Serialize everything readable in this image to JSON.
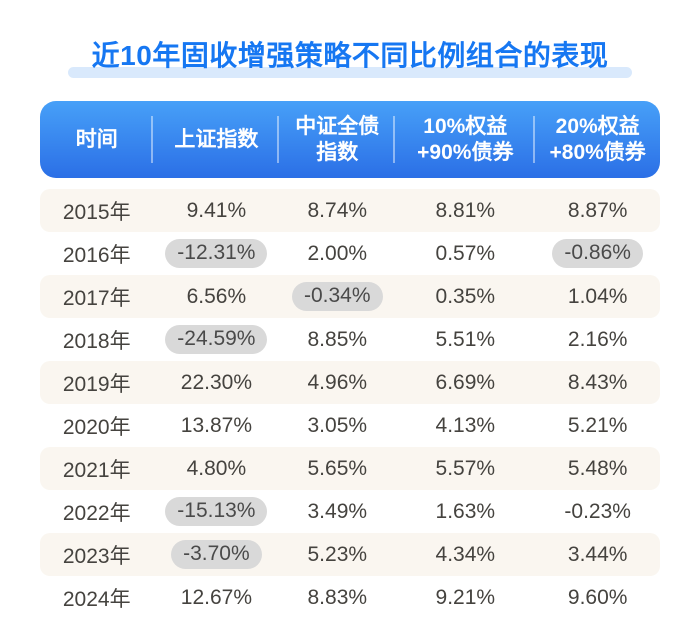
{
  "title": {
    "text": "近10年固收增强策略不同比例组合的表现",
    "color": "#1677f2",
    "underline_color": "#d9e9fc"
  },
  "table": {
    "header": {
      "columns": [
        "时间",
        "上证指数",
        "中证全债\n指数",
        "10%权益\n+90%债券",
        "20%权益\n+80%债券"
      ],
      "bg_gradient_top": "#47a0f8",
      "bg_gradient_bottom": "#2b6fe6",
      "text_color": "#ffffff"
    },
    "alt_row_color": "#faf6f0",
    "text_color": "#45433f",
    "highlight_pill_color": "#d9d9d9",
    "rows": [
      {
        "year": "2015年",
        "values": [
          {
            "text": "9.41%",
            "highlight": false
          },
          {
            "text": "8.74%",
            "highlight": false
          },
          {
            "text": "8.81%",
            "highlight": false
          },
          {
            "text": "8.87%",
            "highlight": false
          }
        ]
      },
      {
        "year": "2016年",
        "values": [
          {
            "text": "-12.31%",
            "highlight": true
          },
          {
            "text": "2.00%",
            "highlight": false
          },
          {
            "text": "0.57%",
            "highlight": false
          },
          {
            "text": "-0.86%",
            "highlight": true
          }
        ]
      },
      {
        "year": "2017年",
        "values": [
          {
            "text": "6.56%",
            "highlight": false
          },
          {
            "text": "-0.34%",
            "highlight": true
          },
          {
            "text": "0.35%",
            "highlight": false
          },
          {
            "text": "1.04%",
            "highlight": false
          }
        ]
      },
      {
        "year": "2018年",
        "values": [
          {
            "text": "-24.59%",
            "highlight": true
          },
          {
            "text": "8.85%",
            "highlight": false
          },
          {
            "text": "5.51%",
            "highlight": false
          },
          {
            "text": "2.16%",
            "highlight": false
          }
        ]
      },
      {
        "year": "2019年",
        "values": [
          {
            "text": "22.30%",
            "highlight": false
          },
          {
            "text": "4.96%",
            "highlight": false
          },
          {
            "text": "6.69%",
            "highlight": false
          },
          {
            "text": "8.43%",
            "highlight": false
          }
        ]
      },
      {
        "year": "2020年",
        "values": [
          {
            "text": "13.87%",
            "highlight": false
          },
          {
            "text": "3.05%",
            "highlight": false
          },
          {
            "text": "4.13%",
            "highlight": false
          },
          {
            "text": "5.21%",
            "highlight": false
          }
        ]
      },
      {
        "year": "2021年",
        "values": [
          {
            "text": "4.80%",
            "highlight": false
          },
          {
            "text": "5.65%",
            "highlight": false
          },
          {
            "text": "5.57%",
            "highlight": false
          },
          {
            "text": "5.48%",
            "highlight": false
          }
        ]
      },
      {
        "year": "2022年",
        "values": [
          {
            "text": "-15.13%",
            "highlight": true
          },
          {
            "text": "3.49%",
            "highlight": false
          },
          {
            "text": "1.63%",
            "highlight": false
          },
          {
            "text": "-0.23%",
            "highlight": false
          }
        ]
      },
      {
        "year": "2023年",
        "values": [
          {
            "text": "-3.70%",
            "highlight": true
          },
          {
            "text": "5.23%",
            "highlight": false
          },
          {
            "text": "4.34%",
            "highlight": false
          },
          {
            "text": "3.44%",
            "highlight": false
          }
        ]
      },
      {
        "year": "2024年",
        "values": [
          {
            "text": "12.67%",
            "highlight": false
          },
          {
            "text": "8.83%",
            "highlight": false
          },
          {
            "text": "9.21%",
            "highlight": false
          },
          {
            "text": "9.60%",
            "highlight": false
          }
        ]
      }
    ]
  },
  "chart_data": {
    "type": "table",
    "title": "近10年固收增强策略不同比例组合的表现",
    "columns": [
      "时间",
      "上证指数",
      "中证全债指数",
      "10%权益+90%债券",
      "20%权益+80%债券"
    ],
    "rows": [
      [
        "2015年",
        "9.41%",
        "8.74%",
        "8.81%",
        "8.87%"
      ],
      [
        "2016年",
        "-12.31%",
        "2.00%",
        "0.57%",
        "-0.86%"
      ],
      [
        "2017年",
        "6.56%",
        "-0.34%",
        "0.35%",
        "1.04%"
      ],
      [
        "2018年",
        "-24.59%",
        "8.85%",
        "5.51%",
        "2.16%"
      ],
      [
        "2019年",
        "22.30%",
        "4.96%",
        "6.69%",
        "8.43%"
      ],
      [
        "2020年",
        "13.87%",
        "3.05%",
        "4.13%",
        "5.21%"
      ],
      [
        "2021年",
        "4.80%",
        "5.65%",
        "5.57%",
        "5.48%"
      ],
      [
        "2022年",
        "-15.13%",
        "3.49%",
        "1.63%",
        "-0.23%"
      ],
      [
        "2023年",
        "-3.70%",
        "5.23%",
        "4.34%",
        "3.44%"
      ],
      [
        "2024年",
        "12.67%",
        "8.83%",
        "9.21%",
        "9.60%"
      ]
    ],
    "highlighted_cells": [
      [
        "2016年",
        "上证指数"
      ],
      [
        "2016年",
        "20%权益+80%债券"
      ],
      [
        "2017年",
        "中证全债指数"
      ],
      [
        "2018年",
        "上证指数"
      ],
      [
        "2022年",
        "上证指数"
      ],
      [
        "2023年",
        "上证指数"
      ]
    ],
    "legend_position": "none",
    "grid": false
  }
}
